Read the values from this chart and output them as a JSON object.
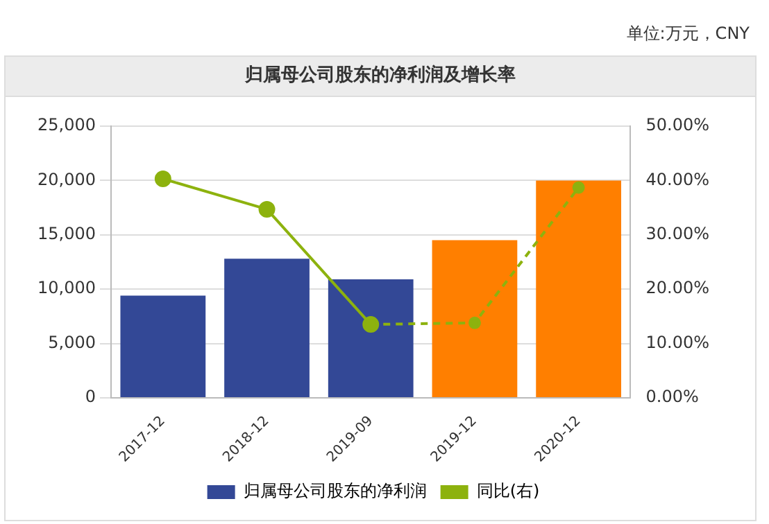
{
  "chart_data": {
    "type": "bar",
    "title": "归属母公司股东的净利润及增长率",
    "annotations": [
      "单位:万元，CNY"
    ],
    "categories": [
      "2017-12",
      "2018-12",
      "2019-09",
      "2019-12",
      "2020-12"
    ],
    "series": [
      {
        "name": "归属母公司股东的净利润",
        "color": "#334896",
        "colors": [
          "#334896",
          "#334896",
          "#334896",
          "#ff7f00",
          "#ff7f00"
        ],
        "values": [
          9400,
          12800,
          10900,
          14500,
          20000
        ]
      },
      {
        "name": "同比(右)",
        "type": "line",
        "axis": "y2",
        "color": "#8db20e",
        "marker": "circle",
        "line_style": "solid",
        "values": [
          40.3,
          34.7,
          13.5,
          null,
          null
        ]
      },
      {
        "type": "line",
        "axis": "y2",
        "color": "#8db20e",
        "marker": "circle",
        "line_style": "dashed",
        "values": [
          null,
          null,
          13.5,
          13.8,
          38.7
        ]
      }
    ],
    "ylim": [
      0,
      25000
    ],
    "yticks": [
      {
        "value": 0,
        "label": "0"
      },
      {
        "value": 5000,
        "label": "5,000"
      },
      {
        "value": 10000,
        "label": "10,000"
      },
      {
        "value": 15000,
        "label": "15,000"
      },
      {
        "value": 20000,
        "label": "20,000"
      },
      {
        "value": 25000,
        "label": "25,000"
      }
    ],
    "y2lim": [
      0,
      50
    ],
    "y2ticks": [
      {
        "value": 0,
        "label": "0.00%"
      },
      {
        "value": 10,
        "label": "10.00%"
      },
      {
        "value": 20,
        "label": "20.00%"
      },
      {
        "value": 30,
        "label": "30.00%"
      },
      {
        "value": 40,
        "label": "40.00%"
      },
      {
        "value": 50,
        "label": "50.00%"
      }
    ],
    "grid": "y",
    "legend": "bottom"
  }
}
